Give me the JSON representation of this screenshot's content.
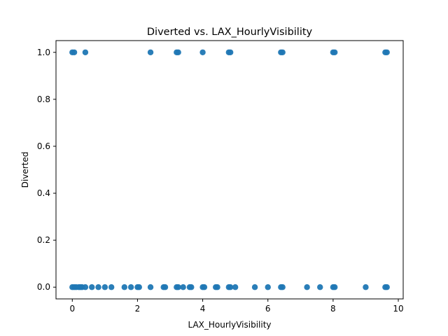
{
  "chart_data": {
    "type": "scatter",
    "title": "Diverted vs. LAX_HourlyVisibility",
    "xlabel": "LAX_HourlyVisibility",
    "ylabel": "Diverted",
    "xlim": [
      -0.5,
      10.15
    ],
    "ylim": [
      -0.05,
      1.05
    ],
    "xticks": [
      0,
      2,
      4,
      6,
      8,
      10
    ],
    "yticks": [
      0.0,
      0.2,
      0.4,
      0.6,
      0.8,
      1.0
    ],
    "xtick_labels": [
      "0",
      "2",
      "4",
      "6",
      "8",
      "10"
    ],
    "ytick_labels": [
      "0.0",
      "0.2",
      "0.4",
      "0.6",
      "0.8",
      "1.0"
    ],
    "grid": false,
    "legend": false,
    "marker_color": "#1f77b4",
    "series": [
      {
        "x": [
          0,
          0.06,
          0.4,
          2.4,
          3.2,
          3.25,
          4.0,
          4.8,
          4.85,
          6.4,
          6.45,
          8.0,
          8.05,
          9.6,
          9.65,
          0,
          0.06,
          0.12,
          0.2,
          0.25,
          0.3,
          0.4,
          0.6,
          0.8,
          1.0,
          1.2,
          1.6,
          1.8,
          2.0,
          2.05,
          2.4,
          2.8,
          2.85,
          3.2,
          3.25,
          3.4,
          3.6,
          3.65,
          4.0,
          4.05,
          4.4,
          4.45,
          4.8,
          4.85,
          5.0,
          5.6,
          6.0,
          6.4,
          6.45,
          7.2,
          7.6,
          8.0,
          8.05,
          9.0,
          9.6,
          9.65
        ],
        "y": [
          1,
          1,
          1,
          1,
          1,
          1,
          1,
          1,
          1,
          1,
          1,
          1,
          1,
          1,
          1,
          0,
          0,
          0,
          0,
          0,
          0,
          0,
          0,
          0,
          0,
          0,
          0,
          0,
          0,
          0,
          0,
          0,
          0,
          0,
          0,
          0,
          0,
          0,
          0,
          0,
          0,
          0,
          0,
          0,
          0,
          0,
          0,
          0,
          0,
          0,
          0,
          0,
          0,
          0,
          0,
          0
        ]
      }
    ]
  }
}
